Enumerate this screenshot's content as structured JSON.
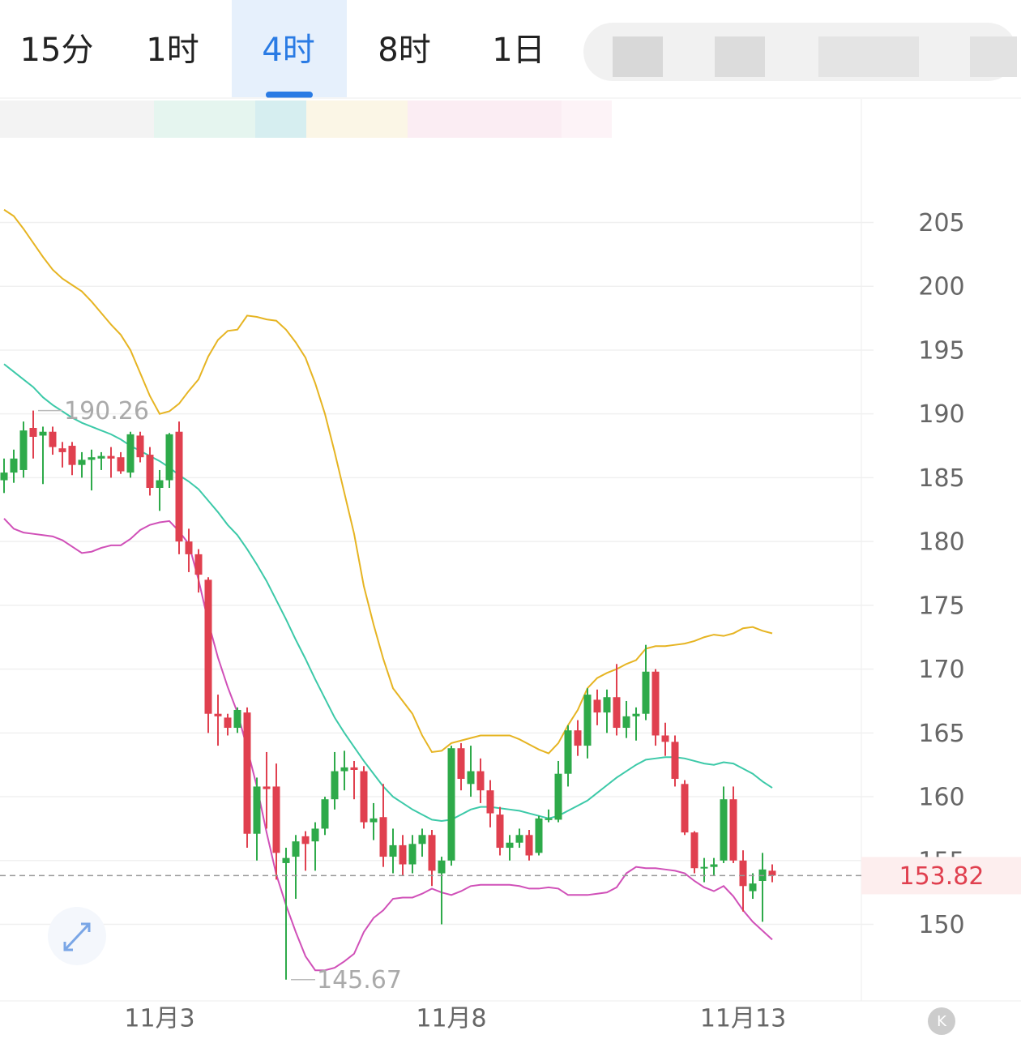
{
  "tabs": [
    "15分",
    "1时",
    "4时",
    "8时",
    "1日"
  ],
  "active_tab": 2,
  "chart_data": {
    "type": "candlestick",
    "categories": [
      null,
      null,
      null,
      null,
      null,
      null,
      null,
      null,
      null,
      null,
      null,
      null,
      null,
      null,
      null,
      null,
      "11月3",
      null,
      null,
      null,
      null,
      null,
      null,
      null,
      null,
      null,
      null,
      null,
      null,
      null,
      null,
      null,
      null,
      null,
      null,
      null,
      null,
      null,
      null,
      null,
      null,
      null,
      null,
      null,
      null,
      null,
      "11月8",
      null,
      null,
      null,
      null,
      null,
      null,
      null,
      null,
      null,
      null,
      null,
      null,
      null,
      null,
      null,
      null,
      null,
      null,
      null,
      null,
      null,
      null,
      null,
      null,
      null,
      null,
      null,
      null,
      null,
      "11月13",
      null,
      null,
      null
    ],
    "candles": [
      [
        184.8,
        186.5,
        183.8,
        185.4
      ],
      [
        185.4,
        187.2,
        184.6,
        186.5
      ],
      [
        185.6,
        189.4,
        185.0,
        188.7
      ],
      [
        188.9,
        190.26,
        186.5,
        188.2
      ],
      [
        188.3,
        189.0,
        184.5,
        188.6
      ],
      [
        188.6,
        189.0,
        186.8,
        187.4
      ],
      [
        187.3,
        187.8,
        185.8,
        187.0
      ],
      [
        187.5,
        187.8,
        185.2,
        186.0
      ],
      [
        186.0,
        187.0,
        185.0,
        186.4
      ],
      [
        186.4,
        187.2,
        184.0,
        186.6
      ],
      [
        186.5,
        187.0,
        185.6,
        186.7
      ],
      [
        186.7,
        187.4,
        185.0,
        186.5
      ],
      [
        186.6,
        187.0,
        185.3,
        185.5
      ],
      [
        185.4,
        188.6,
        185.0,
        188.4
      ],
      [
        188.3,
        188.6,
        186.2,
        186.6
      ],
      [
        186.8,
        187.4,
        183.6,
        184.2
      ],
      [
        184.2,
        185.6,
        182.4,
        184.8
      ],
      [
        184.8,
        188.5,
        184.2,
        188.4
      ],
      [
        188.6,
        189.4,
        179.0,
        180.0
      ],
      [
        180.0,
        181.0,
        177.6,
        179.0
      ],
      [
        179.0,
        179.4,
        176.0,
        177.4
      ],
      [
        177.0,
        177.2,
        165.0,
        166.5
      ],
      [
        166.5,
        168.0,
        164.0,
        166.3
      ],
      [
        166.2,
        166.5,
        164.8,
        165.4
      ],
      [
        165.4,
        167.0,
        165.0,
        166.8
      ],
      [
        166.6,
        167.0,
        156.0,
        157.1
      ],
      [
        157.1,
        161.5,
        155.0,
        160.8
      ],
      [
        160.8,
        163.5,
        157.5,
        160.6
      ],
      [
        160.8,
        162.6,
        153.5,
        155.6
      ],
      [
        154.8,
        156.0,
        145.67,
        155.2
      ],
      [
        155.3,
        157.0,
        152.0,
        156.5
      ],
      [
        156.9,
        157.3,
        154.2,
        156.3
      ],
      [
        156.5,
        158.0,
        154.2,
        157.5
      ],
      [
        157.5,
        160.0,
        157.0,
        159.8
      ],
      [
        159.8,
        163.5,
        159.0,
        162.0
      ],
      [
        162.0,
        163.6,
        160.5,
        162.3
      ],
      [
        162.3,
        162.8,
        159.8,
        162.1
      ],
      [
        162.0,
        162.4,
        157.5,
        158.0
      ],
      [
        158.0,
        159.5,
        156.6,
        158.3
      ],
      [
        158.4,
        161.0,
        154.5,
        155.3
      ],
      [
        155.3,
        157.5,
        154.0,
        156.2
      ],
      [
        156.2,
        157.0,
        153.8,
        154.7
      ],
      [
        154.7,
        157.0,
        154.0,
        156.3
      ],
      [
        156.3,
        157.5,
        155.3,
        157.0
      ],
      [
        157.0,
        157.4,
        153.0,
        154.2
      ],
      [
        154.0,
        155.3,
        150.0,
        155.0
      ],
      [
        155.0,
        164.0,
        154.6,
        163.8
      ],
      [
        163.8,
        164.2,
        160.5,
        161.4
      ],
      [
        161.0,
        164.0,
        160.0,
        162.0
      ],
      [
        162.0,
        163.0,
        159.5,
        160.5
      ],
      [
        160.5,
        161.3,
        157.6,
        158.7
      ],
      [
        158.6,
        159.2,
        155.4,
        156.0
      ],
      [
        156.0,
        157.0,
        155.0,
        156.4
      ],
      [
        156.4,
        157.5,
        156.0,
        157.0
      ],
      [
        157.0,
        157.4,
        155.0,
        155.4
      ],
      [
        155.6,
        158.5,
        155.4,
        158.3
      ],
      [
        158.2,
        159.0,
        158.0,
        158.3
      ],
      [
        158.2,
        162.8,
        158.0,
        161.8
      ],
      [
        161.8,
        165.6,
        160.8,
        165.2
      ],
      [
        165.2,
        166.0,
        163.2,
        164.0
      ],
      [
        164.0,
        168.5,
        163.0,
        168.0
      ],
      [
        167.6,
        168.4,
        165.6,
        166.6
      ],
      [
        166.6,
        168.4,
        165.0,
        167.8
      ],
      [
        167.8,
        170.4,
        164.8,
        165.4
      ],
      [
        165.4,
        167.5,
        164.6,
        166.3
      ],
      [
        166.3,
        167.0,
        164.4,
        166.5
      ],
      [
        166.5,
        171.9,
        166.0,
        169.8
      ],
      [
        169.8,
        170.0,
        164.0,
        164.8
      ],
      [
        164.8,
        165.8,
        163.2,
        164.3
      ],
      [
        164.3,
        164.8,
        160.8,
        161.4
      ],
      [
        161.0,
        161.3,
        157.0,
        157.2
      ],
      [
        157.2,
        157.3,
        154.0,
        154.4
      ],
      [
        154.4,
        155.2,
        153.3,
        154.5
      ],
      [
        154.5,
        155.2,
        153.8,
        154.7
      ],
      [
        155.0,
        160.8,
        154.8,
        159.8
      ],
      [
        159.8,
        160.8,
        154.8,
        155.0
      ],
      [
        155.0,
        155.8,
        151.0,
        153.0
      ],
      [
        152.6,
        154.0,
        152.0,
        153.2
      ],
      [
        153.4,
        155.6,
        150.2,
        154.3
      ],
      [
        154.2,
        154.7,
        153.3,
        153.82
      ]
    ],
    "up_color": "#2eaa4a",
    "down_color": "#e0404f",
    "series": [
      {
        "color": "#e6b422",
        "values": [
          206.0,
          205.5,
          204.5,
          203.4,
          202.3,
          201.3,
          200.6,
          200.1,
          199.6,
          198.8,
          197.9,
          197.0,
          196.2,
          195.0,
          193.2,
          191.4,
          190.0,
          190.2,
          190.8,
          191.8,
          192.7,
          194.5,
          195.8,
          196.5,
          196.6,
          197.7,
          197.6,
          197.4,
          197.3,
          196.6,
          195.6,
          194.4,
          192.4,
          190.0,
          187.0,
          183.8,
          180.6,
          176.5,
          173.5,
          170.8,
          168.5,
          167.5,
          166.5,
          164.8,
          163.5,
          163.6,
          164.2,
          164.4,
          164.6,
          164.8,
          164.8,
          164.8,
          164.8,
          164.5,
          164.1,
          163.7,
          163.4,
          164.2,
          165.6,
          166.8,
          168.5,
          169.3,
          169.7,
          170.0,
          170.4,
          170.7,
          171.6,
          171.8,
          171.8,
          171.9,
          172.0,
          172.2,
          172.5,
          172.7,
          172.6,
          172.8,
          173.2,
          173.3,
          173.0,
          172.8
        ]
      },
      {
        "color": "#3cc9a8",
        "values": [
          193.9,
          193.3,
          192.7,
          192.1,
          191.3,
          190.7,
          190.2,
          189.7,
          189.3,
          189.0,
          188.7,
          188.4,
          188.0,
          187.5,
          187.1,
          186.7,
          186.3,
          185.8,
          185.2,
          184.7,
          184.1,
          183.2,
          182.3,
          181.3,
          180.5,
          179.4,
          178.2,
          176.9,
          175.4,
          173.9,
          172.3,
          170.8,
          169.2,
          167.7,
          166.2,
          165.0,
          163.9,
          162.8,
          161.8,
          160.8,
          160.0,
          159.5,
          159.0,
          158.6,
          158.2,
          158.1,
          158.2,
          158.6,
          159.0,
          159.2,
          159.2,
          159.1,
          159.0,
          158.9,
          158.7,
          158.5,
          158.3,
          158.5,
          158.9,
          159.3,
          159.7,
          160.3,
          160.9,
          161.5,
          162.0,
          162.5,
          162.9,
          163.0,
          163.1,
          163.1,
          163.0,
          162.8,
          162.6,
          162.5,
          162.7,
          162.6,
          162.2,
          161.8,
          161.2,
          160.7
        ]
      },
      {
        "color": "#d050b8",
        "values": [
          181.8,
          181.0,
          180.7,
          180.6,
          180.5,
          180.4,
          180.1,
          179.6,
          179.1,
          179.2,
          179.5,
          179.7,
          179.7,
          180.2,
          180.9,
          181.3,
          181.5,
          181.6,
          180.8,
          179.8,
          177.0,
          173.7,
          170.9,
          168.6,
          166.6,
          163.8,
          160.8,
          157.2,
          153.9,
          151.5,
          149.4,
          147.5,
          146.4,
          146.4,
          146.6,
          147.1,
          147.7,
          149.4,
          150.5,
          151.1,
          152.0,
          152.1,
          152.1,
          152.4,
          152.8,
          152.5,
          152.3,
          152.6,
          153.0,
          153.1,
          153.1,
          153.1,
          153.1,
          153.0,
          152.8,
          152.8,
          152.9,
          152.8,
          152.3,
          152.3,
          152.3,
          152.4,
          152.5,
          152.9,
          154.0,
          154.5,
          154.4,
          154.4,
          154.3,
          154.2,
          154.0,
          153.4,
          152.9,
          152.6,
          153.0,
          152.2,
          151.1,
          150.2,
          149.5,
          148.8
        ]
      }
    ],
    "ylim": [
      144,
      211
    ],
    "yticks": [
      150,
      155,
      160,
      165,
      170,
      175,
      180,
      185,
      190,
      195,
      200,
      205
    ],
    "grid": true
  }
}
